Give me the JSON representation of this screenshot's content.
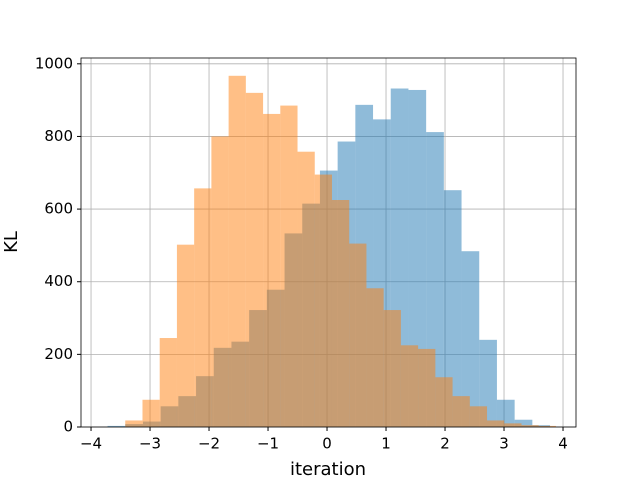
{
  "chart_data": {
    "type": "histogram",
    "xlabel": "iteration",
    "ylabel": "KL",
    "series": [
      {
        "color": "#1f77b4",
        "alpha": 0.5,
        "bins": [
          -3.72,
          -3.42,
          -3.12,
          -2.82,
          -2.52,
          -2.22,
          -1.92,
          -1.62,
          -1.32,
          -1.02,
          -0.72,
          -0.42,
          -0.12,
          0.18,
          0.48,
          0.78,
          1.08,
          1.38,
          1.68,
          1.98,
          2.28,
          2.58,
          2.88,
          3.18,
          3.48,
          3.78
        ],
        "values": [
          3,
          8,
          15,
          57,
          85,
          140,
          218,
          235,
          322,
          378,
          533,
          615,
          706,
          786,
          887,
          847,
          932,
          928,
          812,
          652,
          484,
          240,
          75,
          20,
          5
        ]
      },
      {
        "color": "#ff7f0e",
        "alpha": 0.5,
        "bins": [
          -3.42,
          -3.128,
          -2.836,
          -2.544,
          -2.252,
          -1.96,
          -1.668,
          -1.376,
          -1.084,
          -0.792,
          -0.5,
          -0.208,
          0.084,
          0.376,
          0.668,
          0.96,
          1.252,
          1.544,
          1.836,
          2.128,
          2.42,
          2.712,
          3.004,
          3.296,
          3.588,
          3.88
        ],
        "values": [
          18,
          75,
          245,
          502,
          657,
          800,
          967,
          920,
          862,
          885,
          758,
          695,
          625,
          505,
          382,
          322,
          225,
          215,
          137,
          85,
          57,
          18,
          10,
          5,
          3
        ]
      }
    ],
    "xlim": [
      -4.17,
      4.22
    ],
    "ylim": [
      0,
      1016
    ],
    "xticks": [
      {
        "value": -4,
        "label": "−4"
      },
      {
        "value": -3,
        "label": "−3"
      },
      {
        "value": -2,
        "label": "−2"
      },
      {
        "value": -1,
        "label": "−1"
      },
      0,
      1,
      2,
      3,
      4
    ],
    "yticks": [
      0,
      200,
      400,
      600,
      800,
      1000
    ],
    "grid": true
  }
}
